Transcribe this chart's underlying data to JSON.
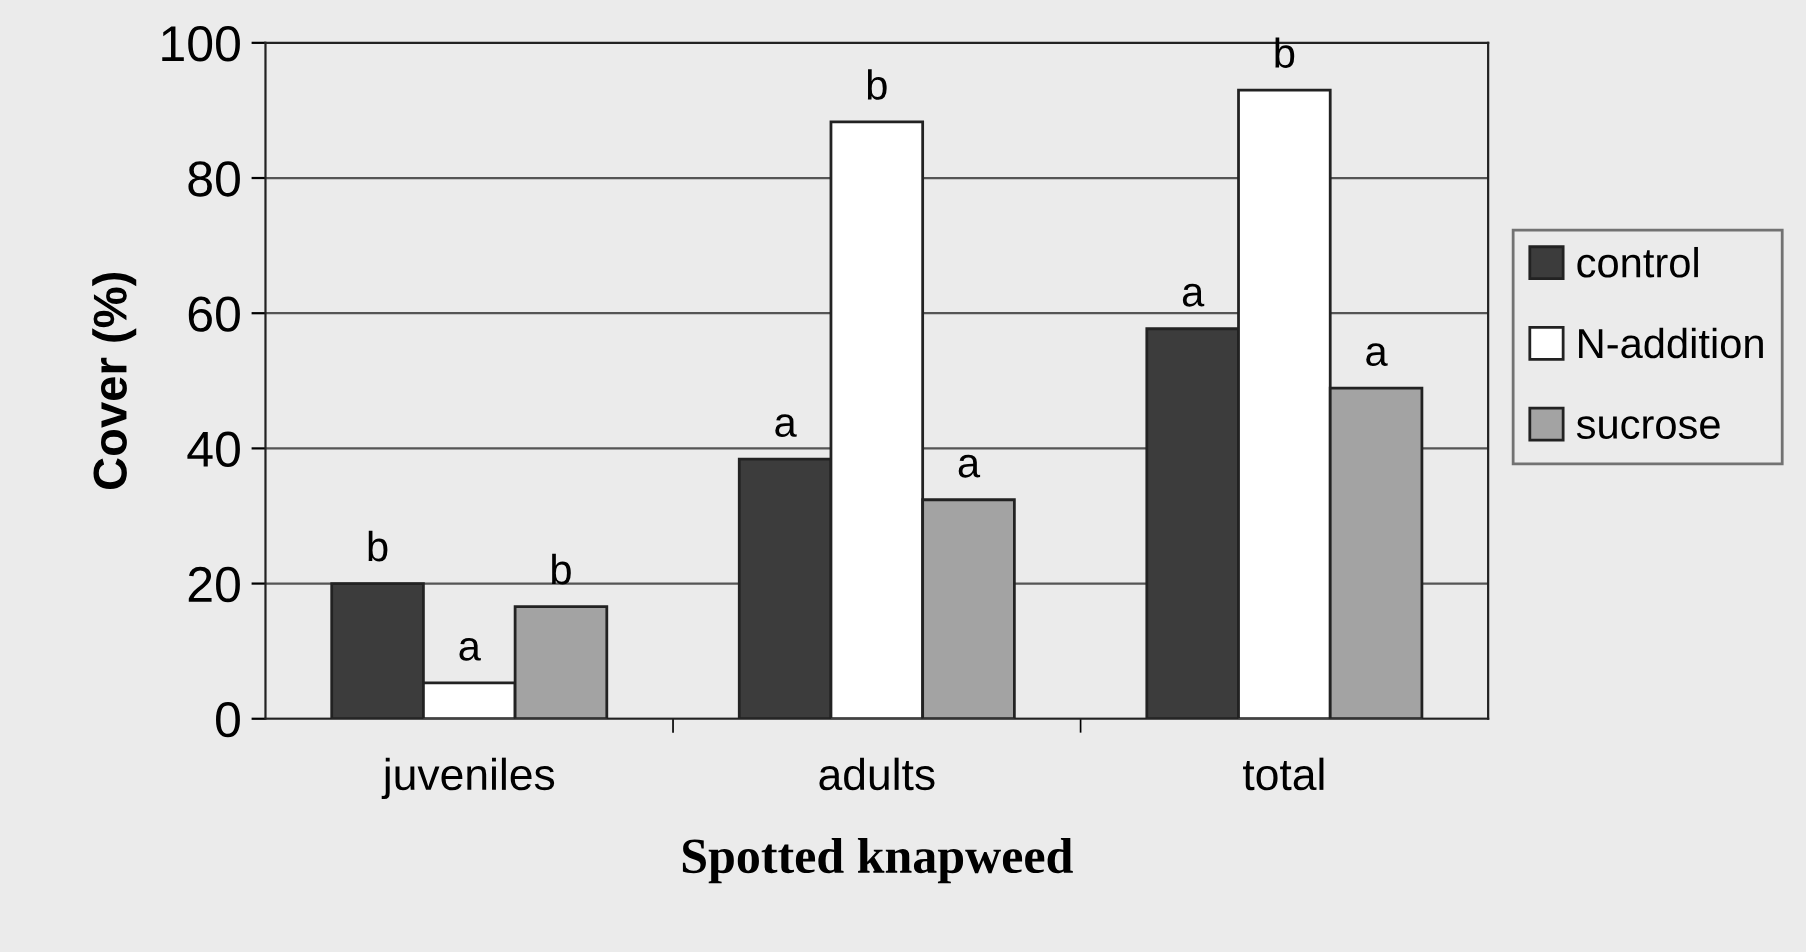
{
  "chart_data": {
    "type": "bar",
    "xlabel": "Spotted knapweed",
    "ylabel": "Cover (%)",
    "categories": [
      "juveniles",
      "adults",
      "total"
    ],
    "series": [
      {
        "name": "control",
        "color": "#3c3c3c",
        "values": [
          20,
          38.4,
          57.7
        ]
      },
      {
        "name": "N-addition",
        "color": "#ffffff",
        "values": [
          5.3,
          88.3,
          93
        ]
      },
      {
        "name": "sucrose",
        "color": "#a3a3a3",
        "values": [
          16.6,
          32.4,
          48.9
        ]
      }
    ],
    "annotations": [
      "b",
      "a",
      "b",
      "a",
      "b",
      "a",
      "a",
      "b",
      "a"
    ],
    "ylim": [
      0,
      100
    ],
    "yticks": [
      0,
      20,
      40,
      60,
      80,
      100
    ],
    "grid": "y",
    "legend": "right"
  }
}
